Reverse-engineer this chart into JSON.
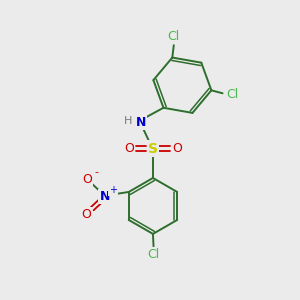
{
  "background_color": "#ebebeb",
  "bond_color": "#2d6e2d",
  "atom_colors": {
    "Cl": "#4db84d",
    "N": "#0000cc",
    "H": "#777777",
    "S": "#cccc00",
    "O": "#cc0000",
    "C": "#2d6e2d"
  },
  "figsize": [
    3.0,
    3.0
  ],
  "dpi": 100
}
